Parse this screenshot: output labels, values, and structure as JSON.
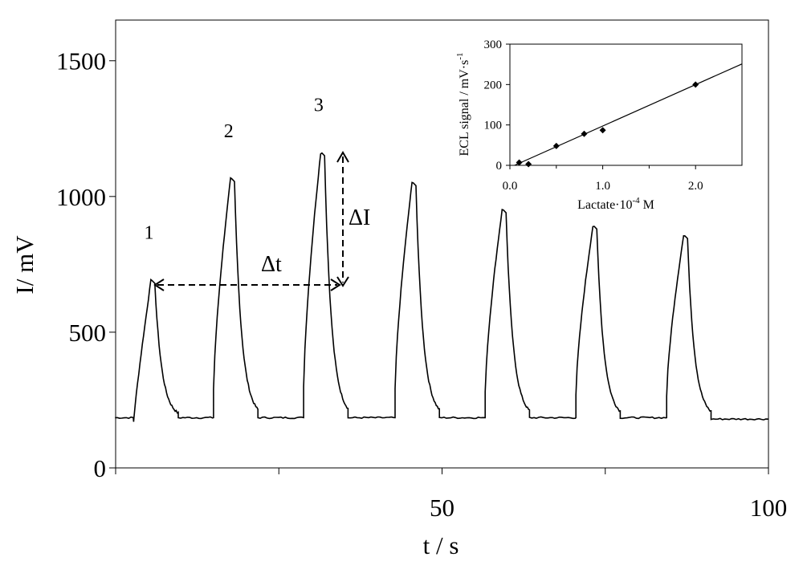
{
  "chart_data": [
    {
      "type": "line",
      "xlabel": "t / s",
      "ylabel": "I/ mV",
      "xlim": [
        0,
        100
      ],
      "ylim": [
        0,
        1650
      ],
      "xticks": [
        0,
        25,
        50,
        75,
        100
      ],
      "xtick_labels": [
        "",
        "",
        "50",
        "",
        "100"
      ],
      "yticks": [
        0,
        500,
        1000,
        1500
      ],
      "ytick_labels": [
        "0",
        "500",
        "1000",
        "1500"
      ],
      "grid": false,
      "baseline": 185,
      "peaks": [
        {
          "label": "1",
          "x": 5.6,
          "y": 690
        },
        {
          "label": "2",
          "x": 17.8,
          "y": 1065
        },
        {
          "label": "3",
          "x": 31.6,
          "y": 1160
        },
        {
          "label": "",
          "x": 45.6,
          "y": 1050
        },
        {
          "label": "",
          "x": 59.4,
          "y": 950
        },
        {
          "label": "",
          "x": 73.3,
          "y": 890
        },
        {
          "label": "",
          "x": 87.2,
          "y": 855
        }
      ],
      "annotations": {
        "delta_t": "Δt",
        "delta_i": "ΔI"
      }
    },
    {
      "type": "scatter",
      "xlabel": "Lactate·10",
      "xlabel_exp": "-4",
      "xlabel_unit": " M",
      "ylabel": "ECL signal / mV·s",
      "ylabel_exp": "-1",
      "xlim": [
        0,
        2.5
      ],
      "ylim": [
        0,
        300
      ],
      "xticks": [
        0,
        1,
        2
      ],
      "xtick_labels": [
        "0.0",
        "1.0",
        "2.0"
      ],
      "yticks": [
        0,
        100,
        200,
        300
      ],
      "ytick_labels": [
        "0",
        "100",
        "200",
        "300"
      ],
      "x": [
        0.1,
        0.2,
        0.5,
        0.8,
        1.0,
        2.0
      ],
      "y": [
        7,
        3,
        48,
        78,
        87,
        200
      ],
      "fit_line": {
        "x": [
          0.05,
          2.5
        ],
        "y": [
          -3,
          251
        ]
      }
    }
  ]
}
